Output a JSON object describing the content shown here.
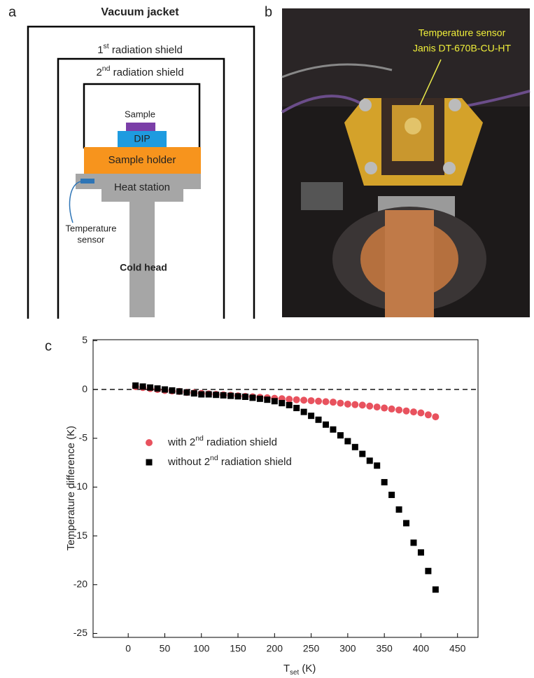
{
  "panel_labels": [
    "a",
    "b",
    "c"
  ],
  "diagram": {
    "vacuum_jacket": "Vacuum jacket",
    "first_shield": "1st radiation shield",
    "second_shield": "2nd radiation shield",
    "sample": "Sample",
    "dip": "DIP",
    "sample_holder": "Sample holder",
    "heat_station": "Heat station",
    "sensor_label": [
      "Temperature",
      "sensor"
    ],
    "cold_head": "Cold head"
  },
  "photo": {
    "annotation": [
      "Temperature sensor",
      "Janis DT-670B-CU-HT"
    ]
  },
  "chart_data": {
    "type": "scatter",
    "xlabel": {
      "text": "T",
      "subscript": "set",
      "suffix": " (K)"
    },
    "ylabel": "Temperature difference (K)",
    "x": [
      10,
      20,
      30,
      40,
      50,
      60,
      70,
      80,
      90,
      100,
      110,
      120,
      130,
      140,
      150,
      160,
      170,
      180,
      190,
      200,
      210,
      220,
      230,
      240,
      250,
      260,
      270,
      280,
      290,
      300,
      310,
      320,
      330,
      340,
      350,
      360,
      370,
      380,
      390,
      400,
      410,
      420
    ],
    "series": [
      {
        "name": "with 2nd radiation shield",
        "color": "#e8525e",
        "marker": "circle",
        "values": [
          0.3,
          0.2,
          0.1,
          0.0,
          -0.1,
          -0.15,
          -0.2,
          -0.3,
          -0.35,
          -0.4,
          -0.45,
          -0.5,
          -0.55,
          -0.6,
          -0.65,
          -0.7,
          -0.75,
          -0.8,
          -0.85,
          -0.9,
          -0.95,
          -1.0,
          -1.05,
          -1.1,
          -1.15,
          -1.2,
          -1.25,
          -1.3,
          -1.4,
          -1.5,
          -1.55,
          -1.6,
          -1.7,
          -1.8,
          -1.9,
          -2.0,
          -2.1,
          -2.2,
          -2.3,
          -2.4,
          -2.6,
          -2.8
        ]
      },
      {
        "name": "without 2nd radiation shield",
        "color": "#000000",
        "marker": "square",
        "values": [
          0.4,
          0.3,
          0.2,
          0.1,
          0.0,
          -0.1,
          -0.2,
          -0.3,
          -0.4,
          -0.5,
          -0.5,
          -0.55,
          -0.6,
          -0.65,
          -0.7,
          -0.75,
          -0.85,
          -0.95,
          -1.05,
          -1.2,
          -1.4,
          -1.6,
          -1.9,
          -2.3,
          -2.7,
          -3.1,
          -3.6,
          -4.1,
          -4.7,
          -5.3,
          -5.9,
          -6.6,
          -7.3,
          -7.8,
          -9.5,
          -10.8,
          -12.3,
          -13.7,
          -15.7,
          -16.7,
          -18.6,
          -20.5
        ]
      }
    ],
    "reference_line": 0,
    "xlim": [
      -48,
      478
    ],
    "xticks": [
      0,
      50,
      100,
      150,
      200,
      250,
      300,
      350,
      400,
      450
    ],
    "ylim": [
      -25.4,
      5.1
    ],
    "yticks": [
      5,
      0,
      -5,
      -10,
      -15,
      -20,
      -25
    ],
    "legend": "lower-left"
  }
}
